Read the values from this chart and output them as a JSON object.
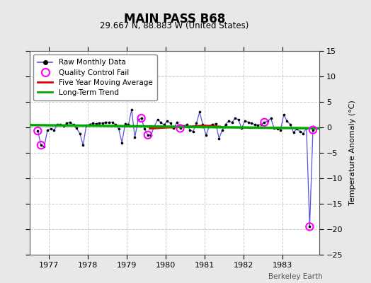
{
  "title": "MAIN PASS B68",
  "subtitle": "29.667 N, 88.883 W (United States)",
  "ylabel": "Temperature Anomaly (°C)",
  "credit": "Berkeley Earth",
  "ylim": [
    -25,
    15
  ],
  "yticks": [
    -25,
    -20,
    -15,
    -10,
    -5,
    0,
    5,
    10,
    15
  ],
  "xlim": [
    1976.5,
    1983.95
  ],
  "xticks": [
    1977,
    1978,
    1979,
    1980,
    1981,
    1982,
    1983
  ],
  "bg_color": "#e8e8e8",
  "plot_bg": "#ffffff",
  "raw_x": [
    1976.708,
    1976.792,
    1976.875,
    1976.958,
    1977.042,
    1977.125,
    1977.208,
    1977.292,
    1977.375,
    1977.458,
    1977.542,
    1977.625,
    1977.708,
    1977.792,
    1977.875,
    1977.958,
    1978.042,
    1978.125,
    1978.208,
    1978.292,
    1978.375,
    1978.458,
    1978.542,
    1978.625,
    1978.708,
    1978.792,
    1978.875,
    1978.958,
    1979.042,
    1979.125,
    1979.208,
    1979.292,
    1979.375,
    1979.458,
    1979.542,
    1979.625,
    1979.708,
    1979.792,
    1979.875,
    1979.958,
    1980.042,
    1980.125,
    1980.208,
    1980.292,
    1980.375,
    1980.458,
    1980.542,
    1980.625,
    1980.708,
    1980.792,
    1980.875,
    1980.958,
    1981.042,
    1981.125,
    1981.208,
    1981.292,
    1981.375,
    1981.458,
    1981.542,
    1981.625,
    1981.708,
    1981.792,
    1981.875,
    1981.958,
    1982.042,
    1982.125,
    1982.208,
    1982.292,
    1982.375,
    1982.458,
    1982.542,
    1982.625,
    1982.708,
    1982.792,
    1982.875,
    1982.958,
    1983.042,
    1983.125,
    1983.208,
    1983.292,
    1983.375,
    1983.458,
    1983.542,
    1983.625,
    1983.708,
    1983.792
  ],
  "raw_y": [
    -0.7,
    -3.5,
    -3.8,
    -0.5,
    -0.3,
    -0.6,
    0.5,
    0.6,
    0.3,
    0.8,
    1.0,
    0.5,
    -0.2,
    -1.2,
    -3.5,
    0.4,
    0.6,
    0.8,
    0.7,
    0.9,
    0.8,
    1.0,
    1.0,
    1.0,
    0.5,
    -0.3,
    -3.0,
    0.7,
    0.5,
    3.5,
    -2.0,
    1.5,
    1.8,
    -0.3,
    -1.5,
    -1.5,
    0.2,
    1.5,
    1.0,
    0.5,
    1.2,
    0.8,
    -0.2,
    1.0,
    -0.2,
    0.3,
    0.5,
    -0.5,
    -0.8,
    0.8,
    3.0,
    0.5,
    -1.5,
    0.3,
    0.6,
    0.7,
    -2.2,
    -0.5,
    0.6,
    1.2,
    1.0,
    1.8,
    1.5,
    -0.2,
    1.3,
    1.0,
    0.8,
    0.6,
    0.4,
    0.6,
    1.0,
    1.2,
    1.8,
    -0.2,
    -0.3,
    -0.5,
    2.5,
    1.2,
    0.6,
    -1.0,
    -0.3,
    -0.8,
    -1.2,
    -0.2,
    -19.5,
    -0.5
  ],
  "qc_fail_x": [
    1976.708,
    1976.792,
    1979.375,
    1979.542,
    1980.375,
    1982.542,
    1983.708,
    1983.792
  ],
  "qc_fail_y": [
    -0.7,
    -3.5,
    1.8,
    -1.5,
    -0.2,
    1.0,
    -19.5,
    -0.5
  ],
  "ma_x": [
    1979.6,
    1979.8,
    1980.0,
    1980.2,
    1980.4,
    1980.6,
    1980.8,
    1981.0,
    1981.2,
    1981.4
  ],
  "ma_y": [
    -0.2,
    -0.1,
    0.0,
    0.05,
    0.1,
    0.1,
    0.2,
    0.3,
    0.2,
    0.1
  ],
  "trend_x": [
    1976.5,
    1983.95
  ],
  "trend_y": [
    0.45,
    -0.2
  ],
  "line_color": "#5555dd",
  "dot_color": "#000000",
  "qc_color": "#ff00ff",
  "ma_color": "#dd0000",
  "trend_color": "#00aa00"
}
